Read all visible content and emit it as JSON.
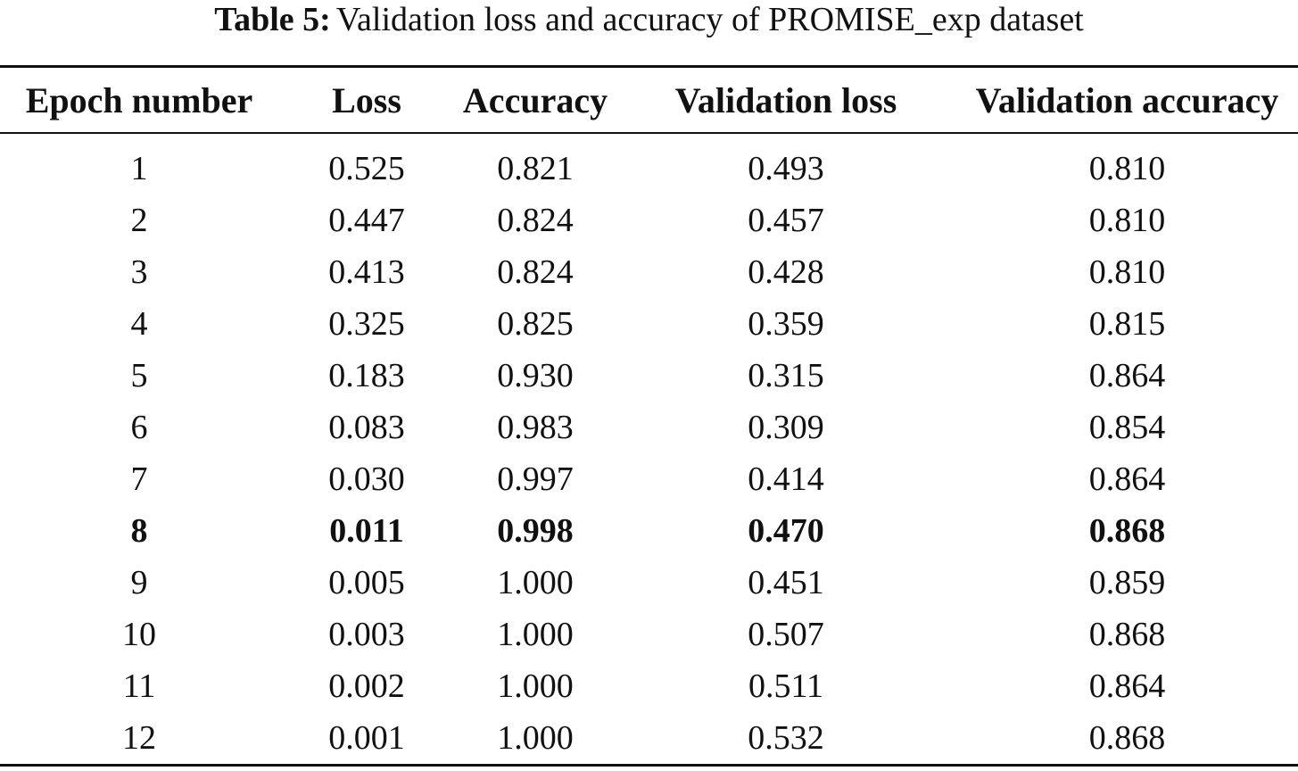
{
  "caption": {
    "label": "Table 5:",
    "text": "Validation loss and accuracy of PROMISE_exp dataset"
  },
  "table": {
    "columns": [
      "Epoch number",
      "Loss",
      "Accuracy",
      "Validation loss",
      "Validation accuracy"
    ],
    "rows": [
      {
        "cells": [
          "1",
          "0.525",
          "0.821",
          "0.493",
          "0.810"
        ],
        "bold": false
      },
      {
        "cells": [
          "2",
          "0.447",
          "0.824",
          "0.457",
          "0.810"
        ],
        "bold": false
      },
      {
        "cells": [
          "3",
          "0.413",
          "0.824",
          "0.428",
          "0.810"
        ],
        "bold": false
      },
      {
        "cells": [
          "4",
          "0.325",
          "0.825",
          "0.359",
          "0.815"
        ],
        "bold": false
      },
      {
        "cells": [
          "5",
          "0.183",
          "0.930",
          "0.315",
          "0.864"
        ],
        "bold": false
      },
      {
        "cells": [
          "6",
          "0.083",
          "0.983",
          "0.309",
          "0.854"
        ],
        "bold": false
      },
      {
        "cells": [
          "7",
          "0.030",
          "0.997",
          "0.414",
          "0.864"
        ],
        "bold": false
      },
      {
        "cells": [
          "8",
          "0.011",
          "0.998",
          "0.470",
          "0.868"
        ],
        "bold": true
      },
      {
        "cells": [
          "9",
          "0.005",
          "1.000",
          "0.451",
          "0.859"
        ],
        "bold": false
      },
      {
        "cells": [
          "10",
          "0.003",
          "1.000",
          "0.507",
          "0.868"
        ],
        "bold": false
      },
      {
        "cells": [
          "11",
          "0.002",
          "1.000",
          "0.511",
          "0.864"
        ],
        "bold": false
      },
      {
        "cells": [
          "12",
          "0.001",
          "1.000",
          "0.532",
          "0.868"
        ],
        "bold": false
      }
    ]
  }
}
